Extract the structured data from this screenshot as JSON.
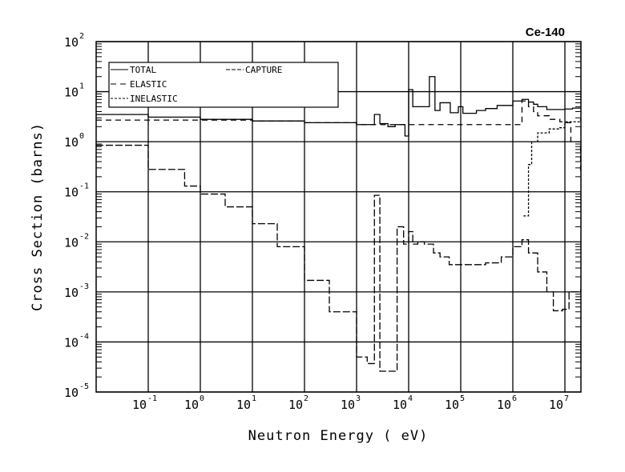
{
  "chart_data": {
    "type": "line",
    "title": "Ce-140",
    "xlabel": "Neutron Energy ( eV)",
    "ylabel": "Cross Section (barns)",
    "xscale": "log",
    "yscale": "log",
    "xlim": [
      0.01,
      20000000
    ],
    "ylim": [
      1e-05,
      100
    ],
    "grid": true,
    "legend_position": "top-left",
    "x_tick_labels": [
      {
        "value": 0.1,
        "base": "10",
        "exp": "-1"
      },
      {
        "value": 1,
        "base": "10",
        "exp": "0"
      },
      {
        "value": 10,
        "base": "10",
        "exp": "1"
      },
      {
        "value": 100,
        "base": "10",
        "exp": "2"
      },
      {
        "value": 1000,
        "base": "10",
        "exp": "3"
      },
      {
        "value": 10000,
        "base": "10",
        "exp": "4"
      },
      {
        "value": 100000,
        "base": "10",
        "exp": "5"
      },
      {
        "value": 1000000,
        "base": "10",
        "exp": "6"
      },
      {
        "value": 10000000,
        "base": "10",
        "exp": "7"
      }
    ],
    "y_tick_labels": [
      {
        "value": 100,
        "base": "10",
        "exp": "2"
      },
      {
        "value": 10,
        "base": "10",
        "exp": "1"
      },
      {
        "value": 1,
        "base": "10",
        "exp": "0"
      },
      {
        "value": 0.1,
        "base": "10",
        "exp": "-1"
      },
      {
        "value": 0.01,
        "base": "10",
        "exp": "-2"
      },
      {
        "value": 0.001,
        "base": "10",
        "exp": "-3"
      },
      {
        "value": 0.0001,
        "base": "10",
        "exp": "-4"
      },
      {
        "value": 1e-05,
        "base": "10",
        "exp": "-5"
      }
    ],
    "series": [
      {
        "name": "TOTAL",
        "style": "solid",
        "x": [
          0.01,
          0.1,
          1,
          10,
          100,
          1000,
          2200,
          2800,
          4000,
          5500,
          8500,
          10000,
          12000,
          20000,
          25000,
          32000,
          40000,
          63000,
          70000,
          90000,
          110000,
          200000,
          300000,
          500000,
          1000000,
          1500000,
          2000000,
          2500000,
          3000000,
          4500000,
          7000000,
          10000000,
          14000000,
          20000000
        ],
        "y": [
          3.5,
          3.1,
          2.8,
          2.6,
          2.4,
          2.2,
          3.5,
          2.3,
          2.0,
          2.2,
          1.3,
          11,
          5.0,
          5.0,
          20,
          4.2,
          6.0,
          3.8,
          3.8,
          5.0,
          3.7,
          4.2,
          4.6,
          5.3,
          6.5,
          7.0,
          6.2,
          5.6,
          5.0,
          4.4,
          4.4,
          4.5,
          4.7,
          4.7
        ]
      },
      {
        "name": "ELASTIC",
        "style": "dashed",
        "x": [
          0.01,
          0.1,
          1,
          10,
          100,
          1000,
          1500000,
          2000000,
          2500000,
          3000000,
          5000000,
          8000000,
          10000000,
          13000000,
          20000000
        ],
        "y": [
          2.7,
          2.7,
          2.7,
          2.6,
          2.4,
          2.2,
          6.5,
          5.0,
          4.0,
          3.3,
          2.8,
          2.5,
          2.4,
          1.0,
          0.25
        ]
      },
      {
        "name": "INELASTIC",
        "style": "dotted",
        "x": [
          1600000,
          2000000,
          2300000,
          3000000,
          5000000,
          8000000,
          10000000,
          20000000
        ],
        "y": [
          0.033,
          0.35,
          1.0,
          1.5,
          1.8,
          1.9,
          2.5,
          2.8
        ]
      },
      {
        "name": "CAPTURE",
        "style": "longdash",
        "x": [
          0.01,
          0.1,
          0.5,
          1,
          3,
          10,
          30,
          100,
          300,
          1000,
          1600,
          2200,
          2800,
          6000,
          8000,
          10000,
          12000,
          15000,
          20000,
          30000,
          40000,
          60000,
          100000,
          300000,
          600000,
          1000000,
          1500000,
          2000000,
          3000000,
          4500000,
          6000000,
          9000000,
          12000000,
          20000000
        ],
        "y": [
          0.85,
          0.28,
          0.13,
          0.09,
          0.05,
          0.023,
          0.008,
          0.0017,
          0.0004,
          5e-05,
          3.7e-05,
          0.085,
          2.6e-05,
          0.02,
          0.009,
          0.016,
          0.009,
          0.01,
          0.009,
          0.006,
          0.005,
          0.0035,
          0.0035,
          0.0038,
          0.005,
          0.008,
          0.011,
          0.006,
          0.0025,
          0.001,
          0.00042,
          0.00045,
          0.001,
          0.0011
        ]
      }
    ]
  }
}
